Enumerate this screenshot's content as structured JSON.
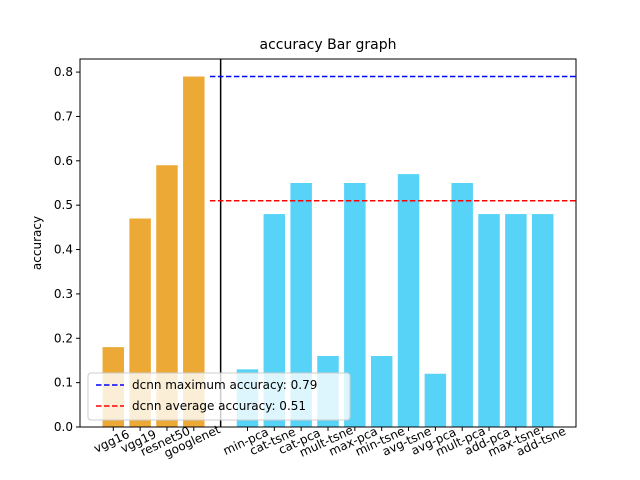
{
  "chart_data": {
    "type": "bar",
    "title": "accuracy Bar graph",
    "y_label": "accuracy",
    "categories": [
      "vgg16",
      "vgg19",
      "resnet50",
      "googlenet",
      null,
      "min-pca",
      "cat-tsne",
      "cat-pca",
      "mult-tsne",
      "max-pca",
      "min-tsne",
      "avg-tsne",
      "avg-pca",
      "mult-pca",
      "add-pca",
      "max-tsne",
      "add-tsne"
    ],
    "values": [
      0.18,
      0.47,
      0.59,
      0.79,
      null,
      0.13,
      0.48,
      0.55,
      0.16,
      0.55,
      0.16,
      0.57,
      0.12,
      0.55,
      0.48,
      0.48,
      0.48
    ],
    "colors": [
      "#eca935",
      "#eca935",
      "#eca935",
      "#eca935",
      null,
      "#57d3f8",
      "#57d3f8",
      "#57d3f8",
      "#57d3f8",
      "#57d3f8",
      "#57d3f8",
      "#57d3f8",
      "#57d3f8",
      "#57d3f8",
      "#57d3f8",
      "#57d3f8",
      "#57d3f8"
    ],
    "xlim": [
      -1.24,
      17.24
    ],
    "ylim": [
      0,
      0.8295
    ],
    "yticks": [
      {
        "value": 0,
        "label": "0.0"
      },
      0.1,
      0.2,
      0.3,
      0.4,
      0.5,
      0.6,
      0.7,
      0.8
    ],
    "vline": {
      "x": 4,
      "color": "#000000"
    },
    "hlines": [
      {
        "value": 0.79,
        "from": 3.6,
        "color": "#0000ff",
        "label": "dcnn maximum accuracy: 0.79"
      },
      {
        "value": 0.51,
        "from": 3.6,
        "color": "#ff0000",
        "label": "dcnn average accuracy: 0.51"
      }
    ],
    "legend": "lower left"
  }
}
